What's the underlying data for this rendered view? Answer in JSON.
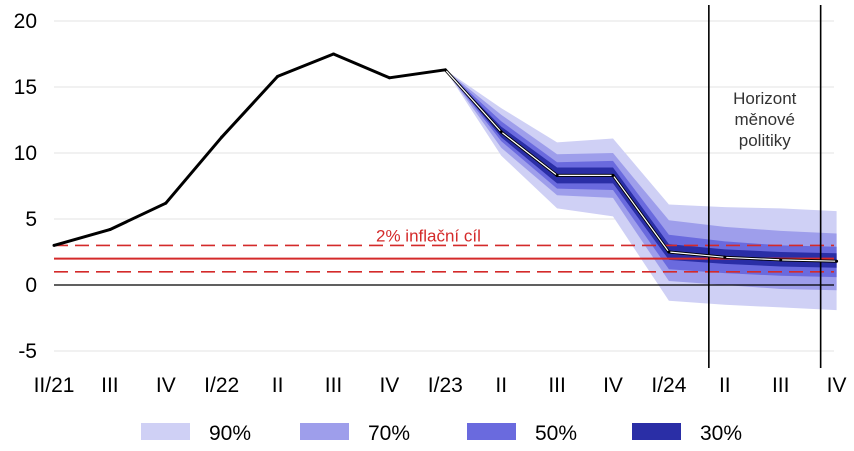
{
  "chart_data": {
    "type": "line",
    "x_labels": [
      "II/21",
      "III",
      "IV",
      "I/22",
      "II",
      "III",
      "IV",
      "I/23",
      "II",
      "III",
      "IV",
      "I/24",
      "II",
      "III",
      "IV"
    ],
    "ylim": [
      -5,
      20
    ],
    "yticks": [
      -5,
      0,
      5,
      10,
      15,
      20
    ],
    "ytick_labels": [
      "-5",
      "0",
      "5",
      "10",
      "15",
      "20"
    ],
    "grid": "horizontal",
    "series": [
      {
        "values": [
          3.0,
          4.2,
          6.2,
          11.2,
          15.8,
          17.5,
          15.7,
          16.3,
          11.6,
          8.3,
          8.3,
          2.5,
          2.1,
          1.9,
          1.8
        ]
      }
    ],
    "fan_start_index": 7,
    "fan_bands": [
      {
        "label": "90%",
        "color": "#cfd0f5",
        "upper": [
          16.3,
          13.4,
          10.8,
          11.1,
          6.1,
          5.9,
          5.8,
          5.6
        ],
        "lower": [
          16.3,
          9.8,
          5.8,
          5.2,
          -1.2,
          -1.5,
          -1.7,
          -1.9
        ]
      },
      {
        "label": "70%",
        "color": "#9e9eeb",
        "upper": [
          16.3,
          12.9,
          9.9,
          10.0,
          4.9,
          4.4,
          4.1,
          3.9
        ],
        "lower": [
          16.3,
          10.4,
          6.8,
          6.6,
          0.3,
          0.0,
          -0.3,
          -0.4
        ]
      },
      {
        "label": "50%",
        "color": "#6a6ade",
        "upper": [
          16.3,
          12.4,
          9.3,
          9.4,
          3.8,
          3.3,
          3.0,
          2.9
        ],
        "lower": [
          16.3,
          10.9,
          7.3,
          7.2,
          1.2,
          0.9,
          0.7,
          0.6
        ]
      },
      {
        "label": "30%",
        "color": "#2a2ea6",
        "upper": [
          16.3,
          12.0,
          8.9,
          8.9,
          3.1,
          2.7,
          2.5,
          2.4
        ],
        "lower": [
          16.3,
          11.2,
          7.7,
          7.7,
          1.9,
          1.6,
          1.4,
          1.3
        ]
      }
    ],
    "target": {
      "label": "2% inflační cíl",
      "value": 2,
      "band": [
        1,
        3
      ],
      "color": "#d42a2a"
    },
    "policy_horizon": {
      "label_lines": [
        "Horizont",
        "měnové",
        "politiky"
      ],
      "from_x": 11.5,
      "to_x": 13.5
    },
    "legend_placement": "bottom",
    "colors": {
      "line": "#000000",
      "grid": "#e3e3e3",
      "zero": "#000000"
    }
  }
}
